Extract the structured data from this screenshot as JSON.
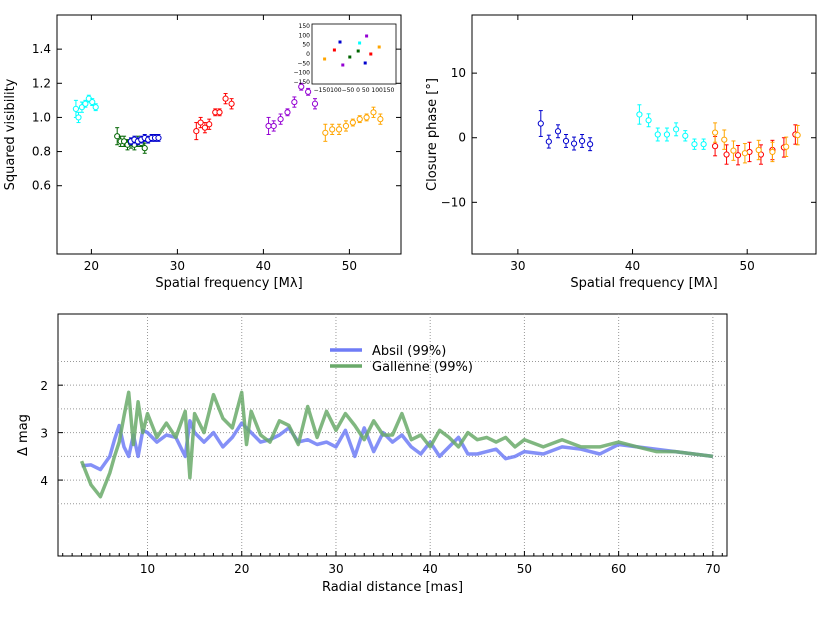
{
  "chart_data": [
    {
      "id": "vis2",
      "type": "scatter",
      "xlabel": "Spatial frequency [Mλ]",
      "ylabel": "Squared visibility",
      "xlim": [
        16,
        56
      ],
      "ylim": [
        0.2,
        1.6
      ],
      "xticks": [
        "20",
        "30",
        "40",
        "50"
      ],
      "yticks": [
        "0.6",
        "0.8",
        "1.0",
        "1.2",
        "1.4"
      ],
      "series": [
        {
          "color": "#00ffff",
          "x": [
            18.2,
            18.5,
            18.9,
            19.3,
            19.7,
            20.1,
            20.5
          ],
          "y": [
            1.05,
            1.0,
            1.06,
            1.08,
            1.11,
            1.09,
            1.06
          ],
          "err": [
            0.05,
            0.03,
            0.03,
            0.02,
            0.02,
            0.02,
            0.02
          ]
        },
        {
          "color": "#006400",
          "x": [
            23.0,
            23.4,
            23.8,
            24.2,
            24.6,
            25.0,
            25.4,
            25.8,
            26.2
          ],
          "y": [
            0.89,
            0.86,
            0.86,
            0.84,
            0.85,
            0.84,
            0.86,
            0.85,
            0.82
          ],
          "err": [
            0.05,
            0.03,
            0.03,
            0.03,
            0.03,
            0.03,
            0.03,
            0.02,
            0.03
          ]
        },
        {
          "color": "#0000cd",
          "x": [
            24.6,
            25.0,
            25.4,
            25.8,
            26.2,
            26.6,
            27.0,
            27.4,
            27.8
          ],
          "y": [
            0.86,
            0.87,
            0.86,
            0.87,
            0.88,
            0.87,
            0.88,
            0.88,
            0.88
          ],
          "err": [
            0.02,
            0.02,
            0.02,
            0.02,
            0.02,
            0.02,
            0.02,
            0.02,
            0.02
          ]
        },
        {
          "color": "#ff0000",
          "x": [
            32.2,
            32.7,
            33.2,
            33.7,
            34.4,
            34.9,
            35.6,
            36.3
          ],
          "y": [
            0.92,
            0.97,
            0.94,
            0.96,
            1.03,
            1.03,
            1.11,
            1.08
          ],
          "err": [
            0.05,
            0.03,
            0.03,
            0.03,
            0.02,
            0.02,
            0.03,
            0.03
          ]
        },
        {
          "color": "#9400d3",
          "x": [
            40.6,
            41.2,
            42.0,
            42.8,
            43.6,
            44.4,
            45.2,
            46.0
          ],
          "y": [
            0.95,
            0.95,
            0.99,
            1.03,
            1.09,
            1.18,
            1.15,
            1.08
          ],
          "err": [
            0.05,
            0.03,
            0.03,
            0.02,
            0.03,
            0.02,
            0.02,
            0.03
          ]
        },
        {
          "color": "#ffa500",
          "x": [
            47.2,
            48.0,
            48.8,
            49.6,
            50.4,
            51.2,
            52.0,
            52.8,
            53.6
          ],
          "y": [
            0.91,
            0.93,
            0.93,
            0.95,
            0.97,
            0.99,
            1.0,
            1.03,
            0.99
          ],
          "err": [
            0.05,
            0.03,
            0.03,
            0.03,
            0.02,
            0.02,
            0.02,
            0.03,
            0.03
          ]
        }
      ],
      "inset": {
        "type": "scatter",
        "xticks": [
          "−150",
          "−100",
          "−50",
          "0",
          "50",
          "100",
          "150"
        ],
        "xtick_text": "−150100−50  0  50 100150",
        "yticks": [
          "150",
          "100",
          "50",
          "0",
          "−50",
          "−100",
          "−150"
        ],
        "xlim": [
          -150,
          150
        ],
        "ylim": [
          -150,
          150
        ],
        "points": [
          {
            "x": -105,
            "y": -25,
            "color": "#ffa500"
          },
          {
            "x": -70,
            "y": 20,
            "color": "#ff0000"
          },
          {
            "x": -50,
            "y": 60,
            "color": "#0000cd"
          },
          {
            "x": -40,
            "y": -55,
            "color": "#9400d3"
          },
          {
            "x": -15,
            "y": -15,
            "color": "#006400"
          },
          {
            "x": 15,
            "y": 15,
            "color": "#006400"
          },
          {
            "x": 20,
            "y": 55,
            "color": "#00ffff"
          },
          {
            "x": 40,
            "y": -45,
            "color": "#0000cd"
          },
          {
            "x": 45,
            "y": 90,
            "color": "#9400d3"
          },
          {
            "x": 60,
            "y": 0,
            "color": "#ff0000"
          },
          {
            "x": 90,
            "y": 35,
            "color": "#ffa500"
          }
        ]
      }
    },
    {
      "id": "cp",
      "type": "scatter",
      "xlabel": "Spatial frequency [Mλ]",
      "ylabel": "Closure phase [°]",
      "xlim": [
        26,
        56
      ],
      "ylim": [
        -18,
        19
      ],
      "xticks": [
        "30",
        "40",
        "50"
      ],
      "yticks": [
        "10",
        "0",
        "−10"
      ],
      "series": [
        {
          "color": "#0000cd",
          "x": [
            32.0,
            32.7,
            33.5,
            34.2,
            34.9,
            35.6,
            36.3
          ],
          "y": [
            2.2,
            -0.6,
            1.0,
            -0.5,
            -0.9,
            -0.5,
            -1.0
          ],
          "err": [
            2.0,
            1.0,
            1.0,
            1.0,
            1.0,
            1.0,
            1.0
          ]
        },
        {
          "color": "#00ffff",
          "x": [
            40.6,
            41.4,
            42.2,
            43.0,
            43.8,
            44.6,
            45.4,
            46.2
          ],
          "y": [
            3.6,
            2.7,
            0.5,
            0.5,
            1.3,
            0.3,
            -1.0,
            -1.0
          ],
          "err": [
            1.5,
            1.0,
            1.0,
            1.0,
            1.0,
            0.8,
            0.8,
            0.8
          ]
        },
        {
          "color": "#ff0000",
          "x": [
            47.2,
            48.2,
            49.2,
            50.2,
            51.2,
            52.2,
            53.2,
            54.2
          ],
          "y": [
            -1.3,
            -2.6,
            -2.7,
            -2.2,
            -2.6,
            -1.9,
            -1.5,
            0.5
          ],
          "err": [
            1.5,
            1.5,
            1.5,
            1.5,
            1.5,
            1.5,
            1.5,
            1.5
          ]
        },
        {
          "color": "#ffa500",
          "x": [
            47.2,
            48.0,
            48.8,
            49.8,
            51.0,
            52.2,
            53.4,
            54.4
          ],
          "y": [
            0.8,
            -0.3,
            -2.0,
            -2.4,
            -1.9,
            -2.2,
            -1.4,
            0.4
          ],
          "err": [
            1.5,
            1.5,
            1.5,
            1.5,
            1.5,
            1.5,
            1.5,
            1.5
          ]
        }
      ]
    },
    {
      "id": "detection",
      "type": "line",
      "xlabel": "Radial distance [mas]",
      "ylabel": "Δ mag",
      "xlim": [
        0.5,
        71.5
      ],
      "ylim": [
        5.6,
        0.5
      ],
      "xticks": [
        "10",
        "20",
        "30",
        "40",
        "50",
        "60",
        "70"
      ],
      "yticks": [
        "2",
        "3",
        "4"
      ],
      "grid": true,
      "legend_position": "top-center",
      "series": [
        {
          "name": "Absil (99%)",
          "color": "#6f7cf6",
          "x": [
            3,
            4,
            5,
            6,
            6.5,
            7,
            7.5,
            8,
            8.5,
            9,
            9.5,
            10,
            11,
            12,
            13,
            14,
            14.5,
            15,
            16,
            17,
            18,
            19,
            20,
            21,
            22,
            23,
            24,
            25,
            26,
            27,
            28,
            29,
            30,
            31,
            32,
            33,
            34,
            35,
            36,
            37,
            38,
            39,
            40,
            41,
            42,
            43,
            44,
            45,
            46,
            47,
            48,
            49,
            50,
            52,
            54,
            56,
            58,
            60,
            62,
            64,
            66,
            68,
            70
          ],
          "y": [
            3.7,
            3.68,
            3.78,
            3.5,
            3.15,
            2.85,
            3.3,
            3.5,
            3.05,
            3.5,
            2.95,
            3.0,
            3.2,
            3.05,
            3.1,
            3.5,
            2.75,
            3.0,
            3.2,
            3.0,
            3.3,
            3.1,
            2.8,
            3.0,
            3.2,
            3.15,
            3.05,
            2.9,
            3.2,
            3.15,
            3.25,
            3.2,
            3.3,
            2.95,
            3.5,
            2.9,
            3.4,
            3.0,
            3.2,
            3.05,
            3.3,
            3.45,
            3.2,
            3.5,
            3.3,
            3.1,
            3.45,
            3.45,
            3.4,
            3.35,
            3.55,
            3.5,
            3.4,
            3.45,
            3.3,
            3.35,
            3.45,
            3.25,
            3.3,
            3.35,
            3.4,
            3.45,
            3.5
          ]
        },
        {
          "name": "Gallenne (99%)",
          "color": "#6aaa6a",
          "x": [
            3,
            4,
            5,
            6,
            6.5,
            7,
            7.5,
            8,
            8.5,
            9,
            9.5,
            10,
            11,
            12,
            13,
            14,
            14.5,
            15,
            16,
            17,
            18,
            19,
            20,
            20.5,
            21,
            22,
            23,
            24,
            25,
            26,
            27,
            28,
            29,
            30,
            31,
            32,
            33,
            34,
            35,
            36,
            37,
            38,
            39,
            40,
            41,
            42,
            43,
            44,
            45,
            46,
            47,
            48,
            49,
            50,
            52,
            54,
            56,
            58,
            60,
            62,
            64,
            66,
            68,
            70
          ],
          "y": [
            3.6,
            4.1,
            4.35,
            3.85,
            3.5,
            3.2,
            2.65,
            2.15,
            3.25,
            2.35,
            3.0,
            2.6,
            3.1,
            2.8,
            3.1,
            2.55,
            3.95,
            2.6,
            3.0,
            2.2,
            2.7,
            2.9,
            2.15,
            3.25,
            2.55,
            3.05,
            3.2,
            2.75,
            2.85,
            3.25,
            2.45,
            3.1,
            2.55,
            2.95,
            2.6,
            2.85,
            3.15,
            2.75,
            3.05,
            3.05,
            2.6,
            3.15,
            3.05,
            3.3,
            2.95,
            3.1,
            3.3,
            3.0,
            3.15,
            3.1,
            3.2,
            3.1,
            3.3,
            3.15,
            3.3,
            3.15,
            3.3,
            3.3,
            3.2,
            3.3,
            3.4,
            3.4,
            3.45,
            3.5
          ]
        }
      ]
    }
  ]
}
